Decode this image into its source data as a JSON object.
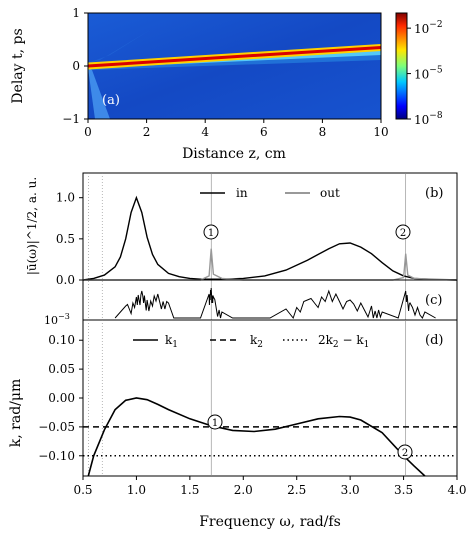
{
  "figure": {
    "panel_a_label": "(a)",
    "panel_b_label": "(b)",
    "panel_c_label": "(c)",
    "panel_d_label": "(d)",
    "marker_1": "1",
    "marker_2": "2"
  },
  "chart_data": [
    {
      "panel": "a",
      "type": "heatmap",
      "xlabel": "Distance z, cm",
      "ylabel": "Delay t, ps",
      "xlim": [
        0,
        10
      ],
      "ylim": [
        -1,
        1
      ],
      "x_ticks": [
        0,
        2,
        4,
        6,
        8,
        10
      ],
      "y_ticks": [
        -1,
        0,
        1
      ],
      "colorbar": {
        "scale": "log",
        "range": [
          1e-08,
          0.1
        ],
        "ticks": [
          -2,
          -5,
          -8
        ],
        "tick_base": "10"
      },
      "main_trace": {
        "z": [
          0,
          10
        ],
        "t": [
          0.0,
          0.35
        ]
      }
    },
    {
      "panel": "b",
      "type": "line",
      "ylabel": "|ū(ω)|^1/2, a. u.",
      "ylim": [
        0,
        1.3
      ],
      "y_ticks": [
        "0.0",
        "0.5",
        "1.0"
      ],
      "legend": [
        "in",
        "out"
      ],
      "legend_position": "top-center",
      "series": [
        {
          "name": "in",
          "color": "#000000",
          "x": [
            0.5,
            0.6,
            0.7,
            0.8,
            0.85,
            0.9,
            0.95,
            1.0,
            1.05,
            1.1,
            1.15,
            1.2,
            1.3,
            1.4,
            1.5,
            1.6,
            1.7,
            1.8,
            2.0,
            2.2,
            2.4,
            2.6,
            2.8,
            2.9,
            3.0,
            3.1,
            3.2,
            3.3,
            3.4,
            3.5,
            3.6,
            3.8,
            4.0
          ],
          "y": [
            0.0,
            0.02,
            0.06,
            0.16,
            0.28,
            0.5,
            0.82,
            1.0,
            0.82,
            0.52,
            0.31,
            0.19,
            0.08,
            0.04,
            0.02,
            0.01,
            0.01,
            0.01,
            0.02,
            0.05,
            0.12,
            0.24,
            0.38,
            0.44,
            0.45,
            0.4,
            0.32,
            0.21,
            0.11,
            0.05,
            0.02,
            0.005,
            0.0
          ]
        },
        {
          "name": "out",
          "color": "#999999",
          "x": [
            0.5,
            1.6,
            1.68,
            1.7,
            1.72,
            1.8,
            2.0,
            3.4,
            3.5,
            3.52,
            3.54,
            3.6,
            4.0
          ],
          "y": [
            0.0,
            0.0,
            0.05,
            0.38,
            0.07,
            0.02,
            0.0,
            0.0,
            0.03,
            0.32,
            0.06,
            0.02,
            0.0
          ]
        }
      ]
    },
    {
      "panel": "c",
      "type": "line",
      "ylabel_tick": "10^-3",
      "description_series": [
        {
          "name": "spectrum-log",
          "x": [
            0.8,
            0.9,
            1.0,
            1.05,
            1.1,
            1.2,
            1.3,
            1.35,
            1.6,
            1.68,
            1.7,
            1.72,
            1.8,
            1.9,
            2.25,
            2.4,
            2.6,
            2.8,
            3.0,
            3.2,
            3.3,
            3.45,
            3.52,
            3.56,
            3.7,
            3.8
          ],
          "y": [
            0.0,
            0.4,
            0.7,
            0.9,
            0.6,
            0.8,
            0.5,
            0.0,
            0.0,
            0.8,
            1.0,
            0.7,
            0.2,
            0.0,
            0.0,
            0.3,
            0.6,
            0.9,
            0.6,
            0.4,
            0.2,
            0.0,
            0.9,
            0.5,
            0.2,
            0.0
          ]
        }
      ]
    },
    {
      "panel": "d",
      "type": "line",
      "xlabel": "Frequency ω, rad/fs",
      "ylabel": "k, rad/μm",
      "xlim": [
        0.5,
        4.0
      ],
      "ylim": [
        -0.135,
        0.135
      ],
      "x_ticks": [
        "0.5",
        "1.0",
        "1.5",
        "2.0",
        "2.5",
        "3.0",
        "3.5",
        "4.0"
      ],
      "y_ticks": [
        "0.10",
        "0.05",
        "0.00",
        "-0.05",
        "-0.10"
      ],
      "legend": [
        "k1",
        "k2",
        "2k2 − k1"
      ],
      "series": [
        {
          "name": "k1",
          "style": "solid",
          "x": [
            0.55,
            0.6,
            0.7,
            0.8,
            0.9,
            1.0,
            1.1,
            1.2,
            1.3,
            1.5,
            1.7,
            1.9,
            2.1,
            2.3,
            2.5,
            2.7,
            2.9,
            3.0,
            3.1,
            3.3,
            3.5,
            3.6,
            3.7
          ],
          "y": [
            -0.14,
            -0.1,
            -0.055,
            -0.02,
            -0.004,
            0.0,
            -0.003,
            -0.011,
            -0.02,
            -0.036,
            -0.048,
            -0.056,
            -0.058,
            -0.054,
            -0.045,
            -0.036,
            -0.032,
            -0.033,
            -0.038,
            -0.06,
            -0.1,
            -0.118,
            -0.135
          ]
        },
        {
          "name": "k2",
          "style": "dashed",
          "y_const": -0.05
        },
        {
          "name": "2k2 − k1",
          "style": "dotted",
          "y_const": -0.1
        }
      ],
      "vertical_guides": [
        0.55,
        0.68,
        1.7,
        3.52
      ]
    }
  ]
}
